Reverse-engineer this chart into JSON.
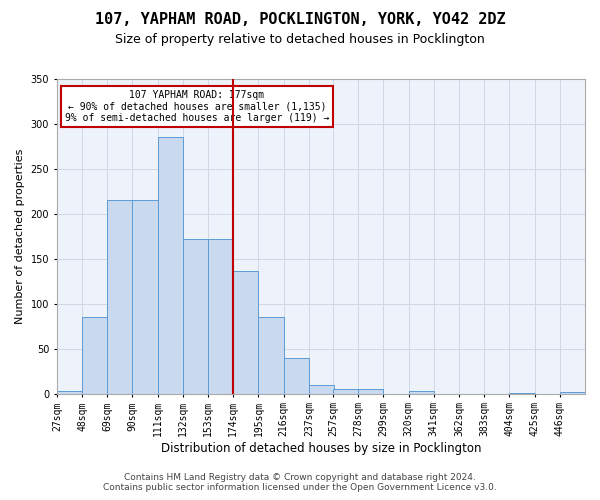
{
  "title": "107, YAPHAM ROAD, POCKLINGTON, YORK, YO42 2DZ",
  "subtitle": "Size of property relative to detached houses in Pocklington",
  "xlabel": "Distribution of detached houses by size in Pocklington",
  "ylabel": "Number of detached properties",
  "footnote1": "Contains HM Land Registry data © Crown copyright and database right 2024.",
  "footnote2": "Contains public sector information licensed under the Open Government Licence v3.0.",
  "annotation_line1": "107 YAPHAM ROAD: 177sqm",
  "annotation_line2": "← 90% of detached houses are smaller (1,135)",
  "annotation_line3": "9% of semi-detached houses are larger (119) →",
  "bar_color": "#c9d9f0",
  "bar_edge_color": "#5b9bd5",
  "vline_color": "#c00000",
  "vline_x": 174,
  "categories": [
    "27sqm",
    "48sqm",
    "69sqm",
    "90sqm",
    "111sqm",
    "132sqm",
    "153sqm",
    "174sqm",
    "195sqm",
    "216sqm",
    "237sqm",
    "257sqm",
    "278sqm",
    "299sqm",
    "320sqm",
    "341sqm",
    "362sqm",
    "383sqm",
    "404sqm",
    "425sqm",
    "446sqm"
  ],
  "bin_edges": [
    27,
    48,
    69,
    90,
    111,
    132,
    153,
    174,
    195,
    216,
    237,
    257,
    278,
    299,
    320,
    341,
    362,
    383,
    404,
    425,
    446,
    467
  ],
  "values": [
    3,
    85,
    215,
    215,
    285,
    172,
    172,
    136,
    85,
    40,
    10,
    5,
    5,
    0,
    3,
    0,
    0,
    0,
    1,
    0,
    2
  ],
  "ylim": [
    0,
    350
  ],
  "yticks": [
    0,
    50,
    100,
    150,
    200,
    250,
    300,
    350
  ],
  "grid_color": "#d0d8e8",
  "background_color": "#eef2fa",
  "title_fontsize": 11,
  "subtitle_fontsize": 9,
  "axis_label_fontsize": 8,
  "tick_fontsize": 7,
  "footnote_fontsize": 6.5
}
